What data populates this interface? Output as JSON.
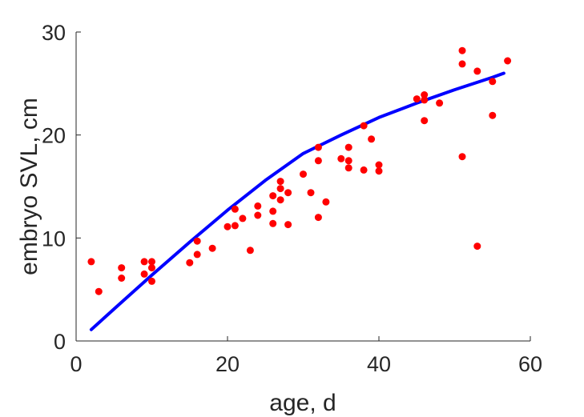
{
  "chart_data": {
    "type": "scatter",
    "title": "",
    "xlabel": "age, d",
    "ylabel": "embryo SVL, cm",
    "xlim": [
      0,
      60
    ],
    "ylim": [
      0,
      30
    ],
    "xticks": [
      "0",
      "20",
      "40",
      "60"
    ],
    "yticks": [
      "0",
      "10",
      "20",
      "30"
    ],
    "grid": false,
    "box": false,
    "colors": {
      "points": "#ff0000",
      "fit": "#0000ff",
      "axes": "#262626"
    },
    "series": [
      {
        "kind": "scatter",
        "x": [
          2,
          3,
          6,
          6,
          9,
          9,
          10,
          10,
          10,
          15,
          16,
          16,
          18,
          20,
          21,
          21,
          22,
          23,
          24,
          24,
          26,
          26,
          26,
          27,
          27,
          27,
          28,
          28,
          30,
          31,
          32,
          32,
          32,
          33,
          35,
          36,
          36,
          36,
          38,
          38,
          39,
          40,
          40,
          45,
          46,
          46,
          46,
          48,
          51,
          51,
          51,
          53,
          53,
          55,
          55,
          57
        ],
        "y": [
          7.7,
          4.8,
          7.1,
          6.1,
          7.7,
          6.5,
          7.7,
          7.1,
          5.8,
          7.6,
          9.7,
          8.4,
          9.0,
          11.1,
          12.8,
          11.2,
          11.9,
          8.8,
          13.1,
          12.2,
          14.1,
          12.6,
          11.4,
          15.5,
          14.8,
          13.7,
          14.4,
          11.3,
          16.2,
          14.4,
          18.8,
          17.5,
          12.0,
          13.5,
          17.7,
          18.8,
          17.5,
          16.8,
          20.9,
          16.6,
          19.6,
          17.1,
          16.5,
          23.5,
          23.9,
          23.4,
          21.4,
          23.1,
          28.2,
          26.9,
          17.9,
          26.2,
          9.2,
          25.2,
          21.9,
          27.2
        ]
      },
      {
        "kind": "line",
        "x": [
          2,
          5,
          10,
          15,
          20,
          25,
          30,
          35,
          40,
          45,
          50,
          55,
          56.5
        ],
        "y": [
          1.1,
          3.1,
          6.4,
          9.6,
          12.7,
          15.6,
          18.2,
          20.0,
          21.7,
          23.1,
          24.4,
          25.6,
          26.0
        ]
      }
    ]
  }
}
